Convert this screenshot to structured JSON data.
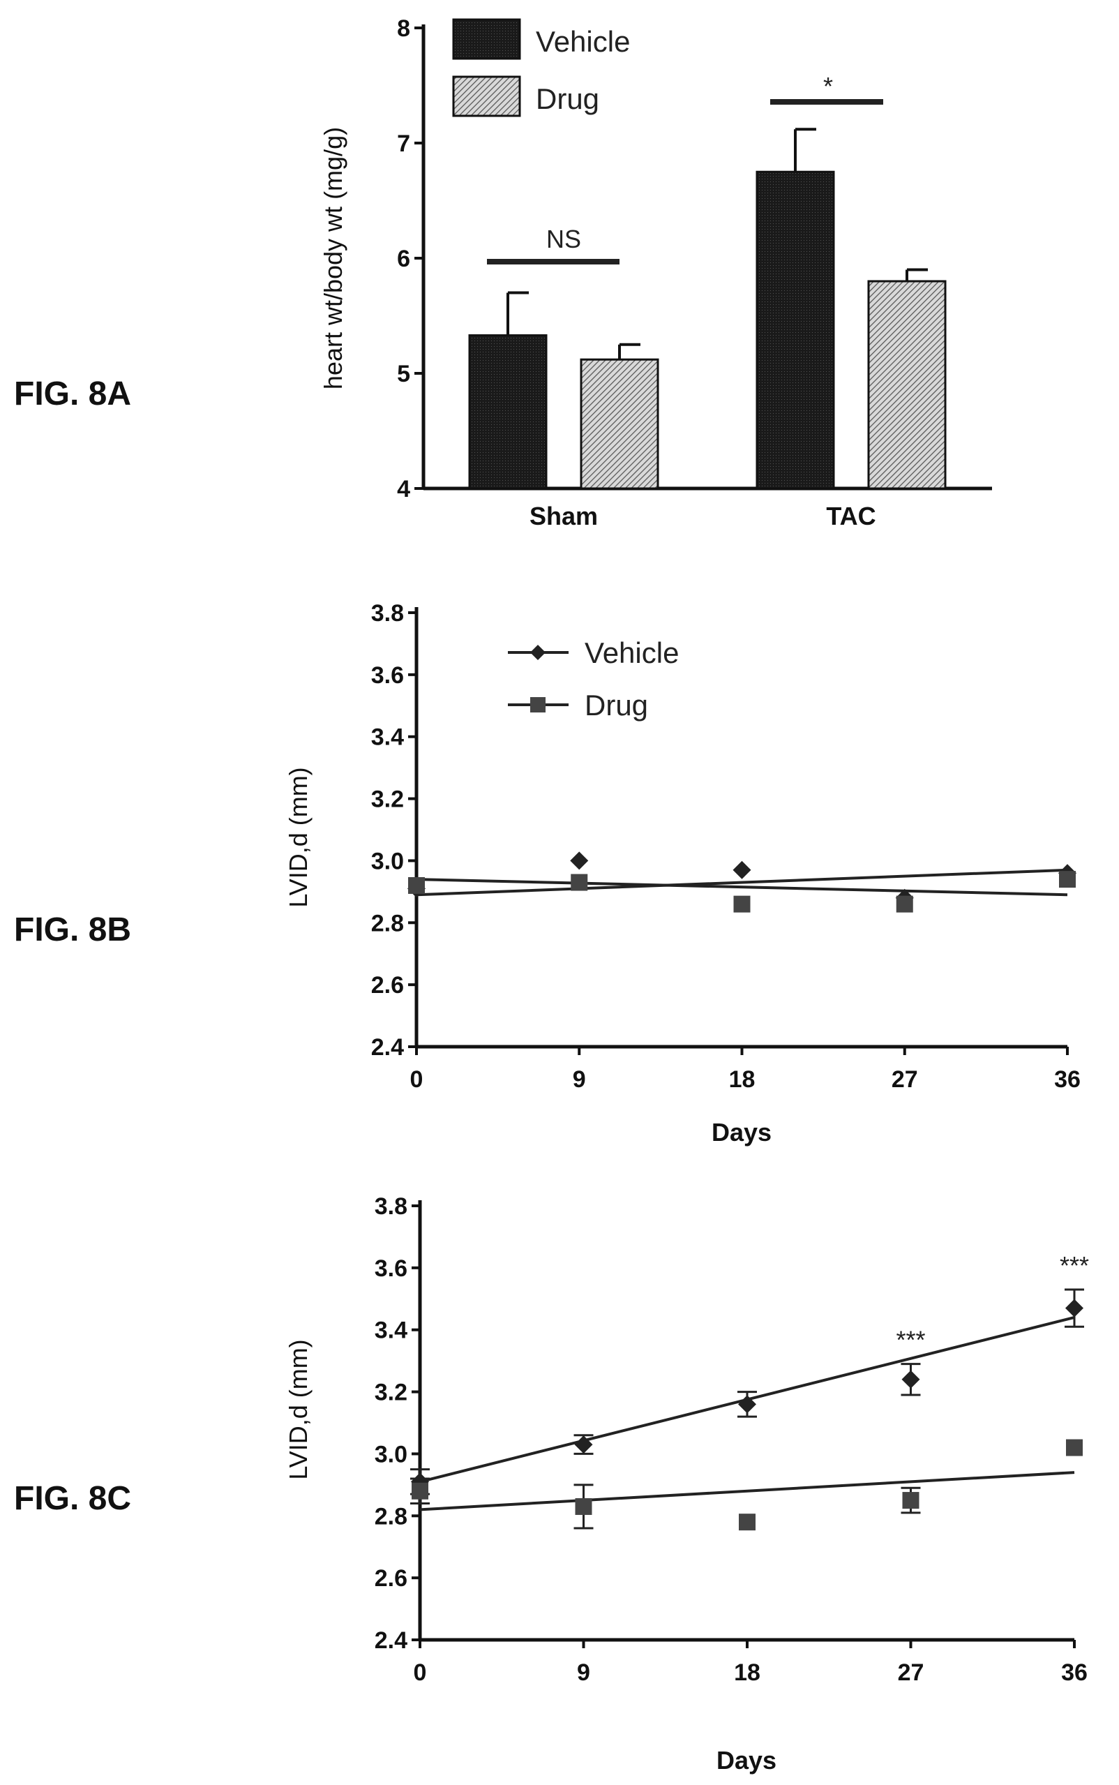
{
  "figure_labels": [
    "FIG. 8A",
    "FIG. 8B",
    "FIG. 8C"
  ],
  "colors": {
    "vehicle": "#1f1f1f",
    "drug": "#8c8c8c",
    "axis": "#111111"
  },
  "chart_data": [
    {
      "type": "bar",
      "title": "",
      "ylabel": "heart wt/body wt (mg/g)",
      "xlabel": "",
      "ylim": [
        4,
        8
      ],
      "yticks": [
        "4",
        "5",
        "6",
        "7",
        "8"
      ],
      "categories": [
        "Sham",
        "TAC"
      ],
      "series": [
        {
          "name": "Vehicle",
          "values": [
            5.33,
            6.75
          ],
          "errors": [
            0.37,
            0.37
          ]
        },
        {
          "name": "Drug",
          "values": [
            5.12,
            5.8
          ],
          "errors": [
            0.13,
            0.1
          ]
        }
      ],
      "annotations": [
        {
          "text": "NS",
          "category": "Sham"
        },
        {
          "text": "*",
          "category": "TAC"
        }
      ],
      "legend_position": "top-left"
    },
    {
      "type": "scatter",
      "title": "",
      "ylabel": "LVID,d (mm)",
      "xlabel": "Days",
      "xlim": [
        0,
        36
      ],
      "ylim": [
        2.4,
        3.8
      ],
      "xticks": [
        "0",
        "9",
        "18",
        "27",
        "36"
      ],
      "yticks": [
        "2.4",
        "2.6",
        "2.8",
        "3.0",
        "3.2",
        "3.4",
        "3.6",
        "3.8"
      ],
      "series": [
        {
          "name": "Vehicle",
          "marker": "diamond",
          "x": [
            0,
            9,
            18,
            27,
            36
          ],
          "y": [
            2.91,
            3.0,
            2.97,
            2.88,
            2.96
          ],
          "fit": [
            2.89,
            2.97
          ]
        },
        {
          "name": "Drug",
          "marker": "square",
          "x": [
            0,
            9,
            18,
            27,
            36
          ],
          "y": [
            2.92,
            2.93,
            2.86,
            2.86,
            2.94
          ],
          "fit": [
            2.94,
            2.89
          ]
        }
      ],
      "legend_position": "top-center"
    },
    {
      "type": "scatter",
      "title": "",
      "ylabel": "LVID,d (mm)",
      "xlabel": "Days",
      "xlim": [
        0,
        36
      ],
      "ylim": [
        2.4,
        3.8
      ],
      "xticks": [
        "0",
        "9",
        "18",
        "27",
        "36"
      ],
      "yticks": [
        "2.4",
        "2.6",
        "2.8",
        "3.0",
        "3.2",
        "3.4",
        "3.6",
        "3.8"
      ],
      "series": [
        {
          "name": "Vehicle",
          "marker": "diamond",
          "x": [
            0,
            9,
            18,
            27,
            36
          ],
          "y": [
            2.91,
            3.03,
            3.16,
            3.24,
            3.47
          ],
          "errors": [
            0.04,
            0.03,
            0.04,
            0.05,
            0.06
          ],
          "fit": [
            2.91,
            3.44
          ]
        },
        {
          "name": "Drug",
          "marker": "square",
          "x": [
            0,
            9,
            18,
            27,
            36
          ],
          "y": [
            2.88,
            2.83,
            2.78,
            2.85,
            3.02
          ],
          "errors": [
            0.04,
            0.07,
            0.0,
            0.04,
            0.0
          ],
          "fit": [
            2.82,
            2.94
          ]
        }
      ],
      "annotations": [
        {
          "text": "***",
          "x": 27
        },
        {
          "text": "***",
          "x": 36
        }
      ]
    }
  ]
}
